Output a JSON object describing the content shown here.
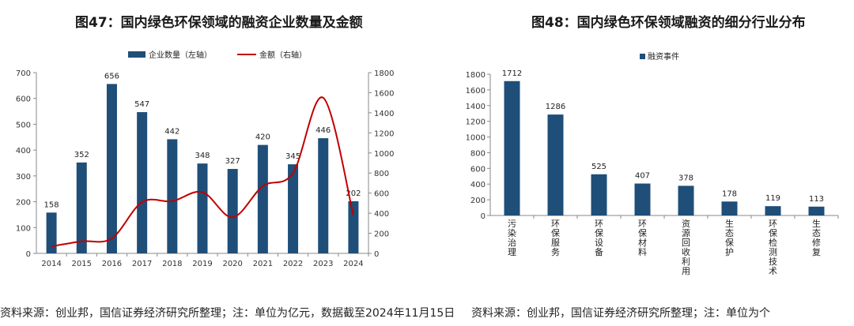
{
  "colors": {
    "bar": "#1f4e79",
    "line": "#c00000",
    "axis": "#888888"
  },
  "chart_data": [
    {
      "type": "bar+line",
      "title": "图47：国内绿色环保领域的融资企业数量及金额",
      "categories": [
        "2014",
        "2015",
        "2016",
        "2017",
        "2018",
        "2019",
        "2020",
        "2021",
        "2022",
        "2023",
        "2024"
      ],
      "series": [
        {
          "name": "企业数量（左轴）",
          "type": "bar",
          "axis": "left",
          "values": [
            158,
            352,
            656,
            547,
            442,
            348,
            327,
            420,
            345,
            446,
            202
          ]
        },
        {
          "name": "金额（右轴）",
          "type": "line",
          "axis": "right",
          "values": [
            70,
            120,
            150,
            510,
            520,
            610,
            360,
            670,
            800,
            1550,
            380
          ]
        }
      ],
      "left_ylim": [
        0,
        700
      ],
      "left_yticks": [
        "0",
        "100",
        "200",
        "300",
        "400",
        "500",
        "600",
        "700"
      ],
      "right_ylim": [
        0,
        1800
      ],
      "right_yticks": [
        "0",
        "200",
        "400",
        "600",
        "800",
        "1000",
        "1200",
        "1400",
        "1600",
        "1800"
      ],
      "legend_position": "top",
      "source": "资料来源：创业邦，国信证券经济研究所整理；注：单位为亿元，数据截至2024年11月15日"
    },
    {
      "type": "bar",
      "title": "图48：国内绿色环保领域融资的细分行业分布",
      "categories": [
        "污染治理",
        "环保服务",
        "环保设备",
        "环保材料",
        "资源回收利用",
        "生态保护",
        "环保检测技术",
        "生态修复"
      ],
      "series": [
        {
          "name": "融资事件",
          "values": [
            1712,
            1286,
            525,
            407,
            378,
            178,
            119,
            113
          ]
        }
      ],
      "ylim": [
        0,
        1800
      ],
      "yticks": [
        "0",
        "200",
        "400",
        "600",
        "800",
        "1000",
        "1200",
        "1400",
        "1600",
        "1800"
      ],
      "legend_position": "top",
      "source": "资料来源：创业邦，国信证券经济研究所整理；注：单位为个"
    }
  ]
}
